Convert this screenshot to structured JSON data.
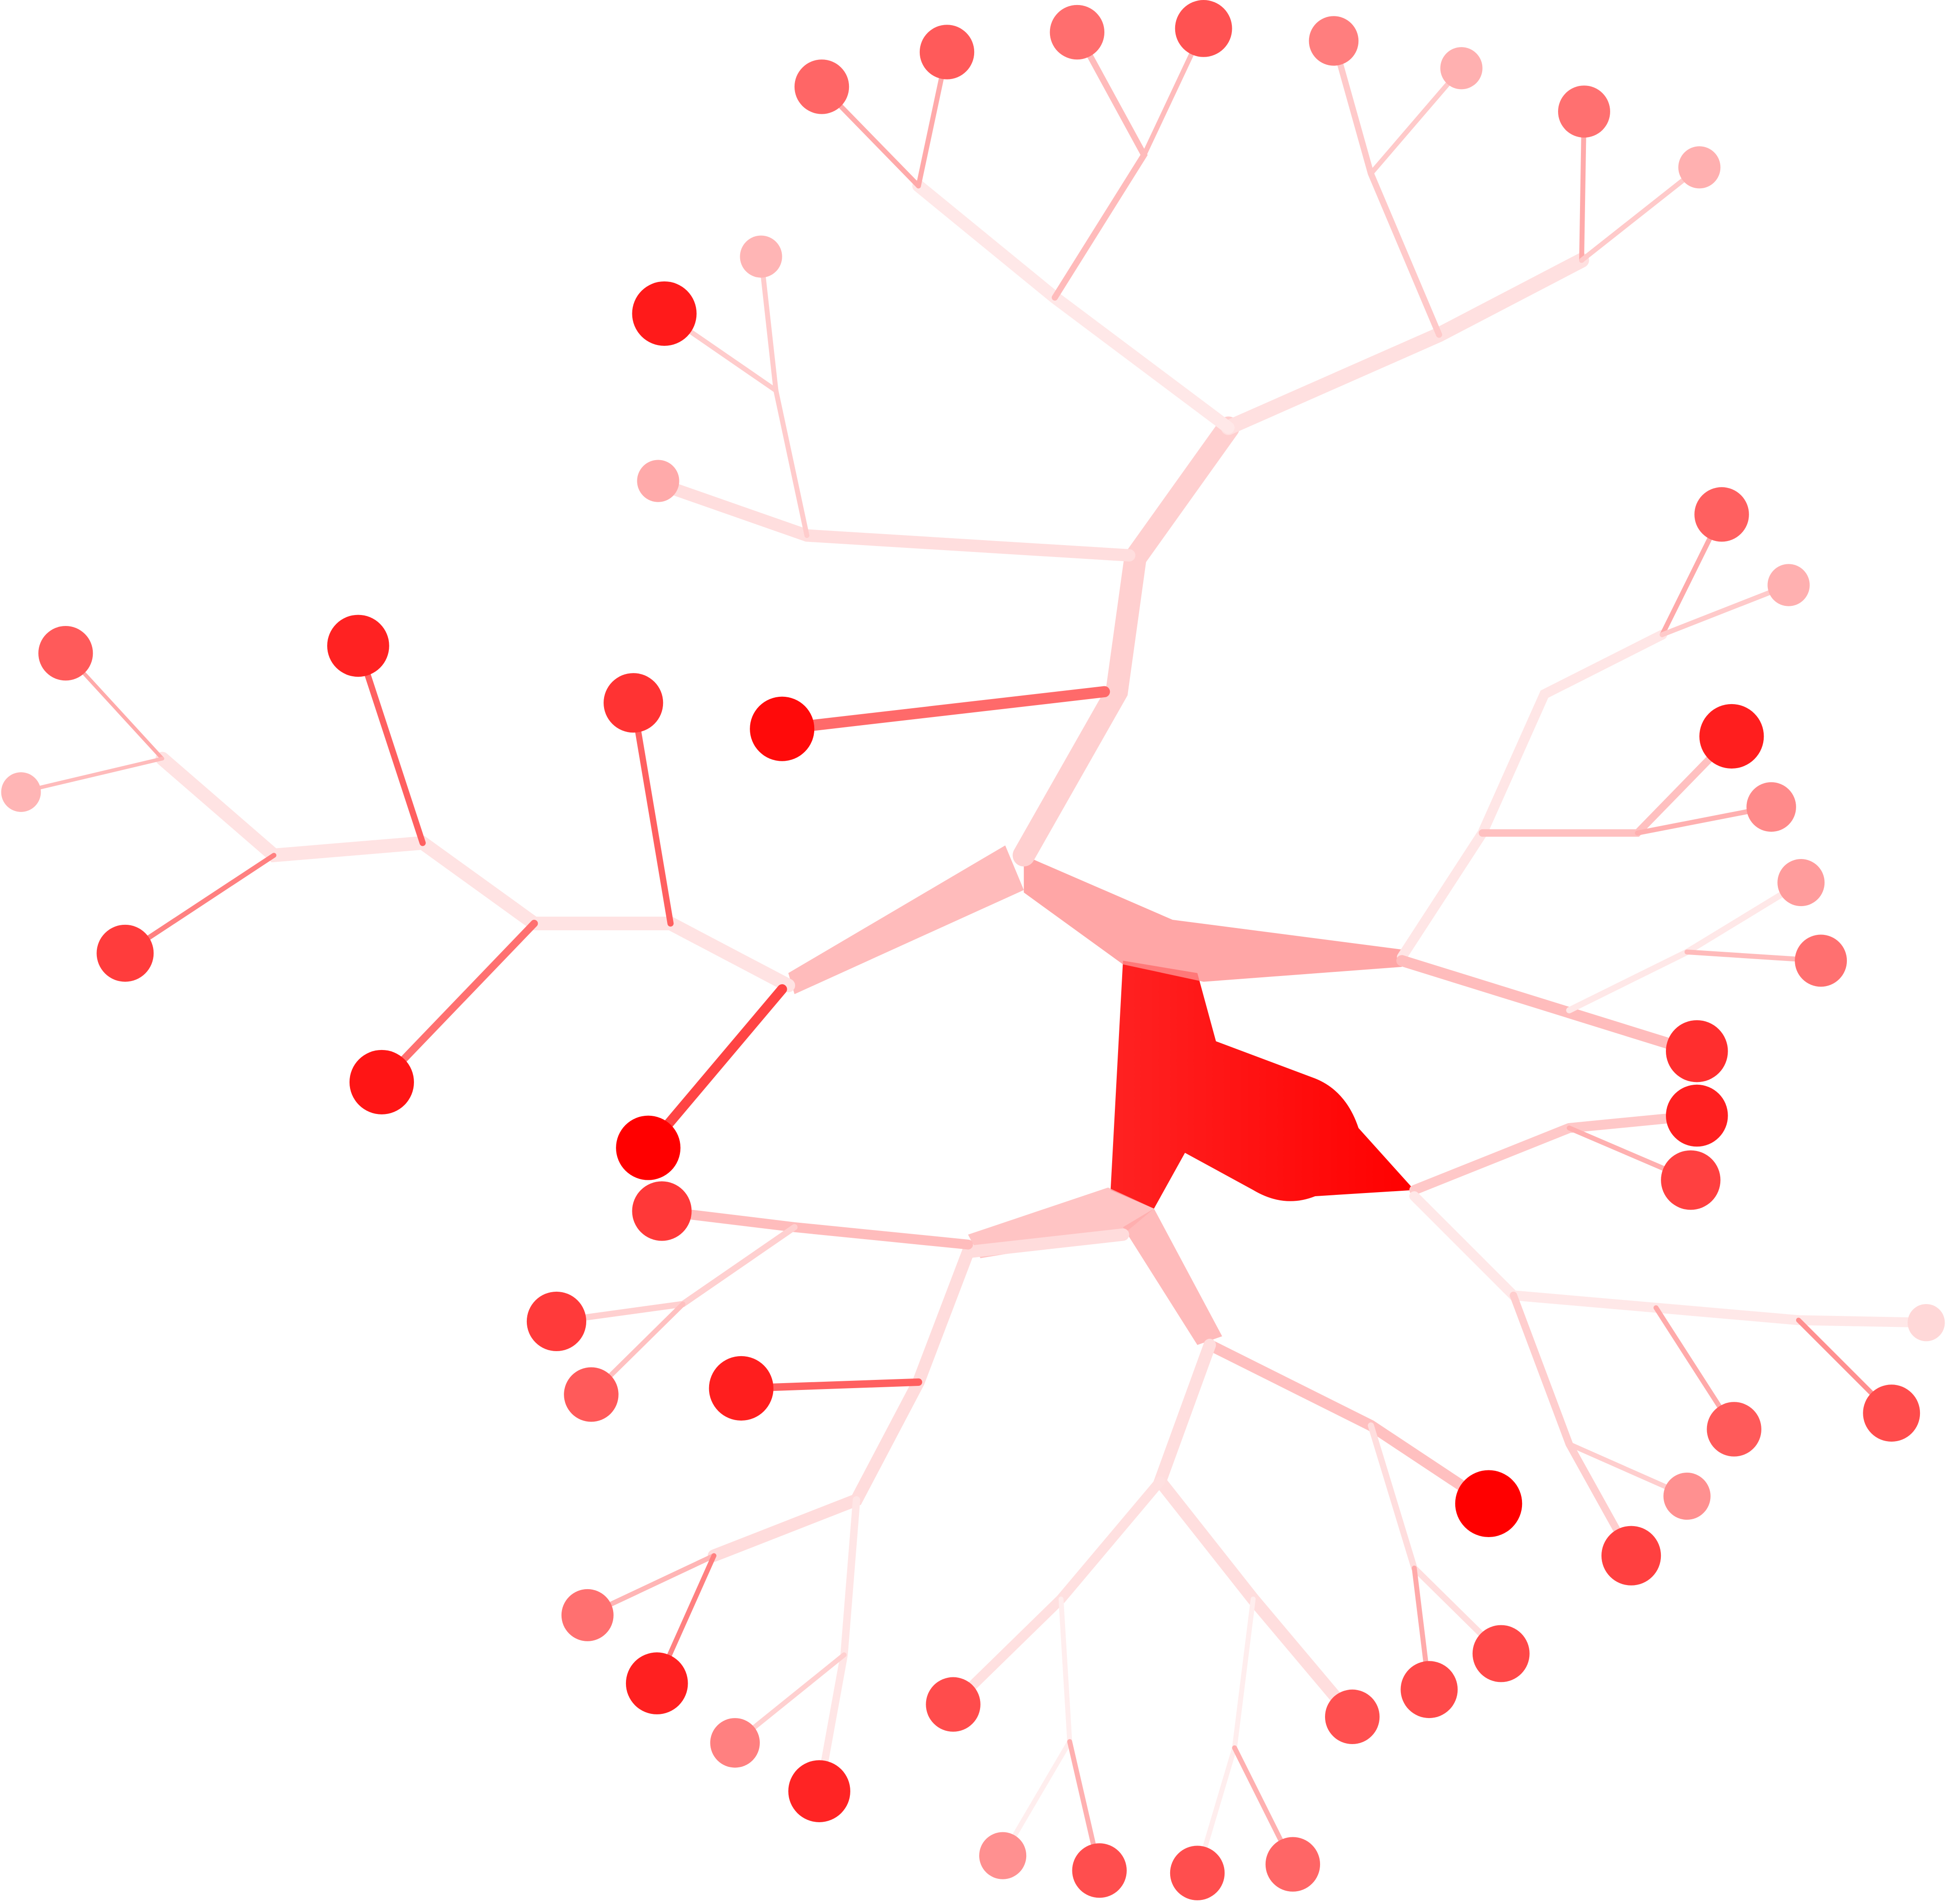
{
  "diagram": {
    "type": "radial-tree",
    "description_label": "",
    "colors": {
      "background": "#ffffff",
      "node_strong": "#ff0000",
      "node_medium": "#ff5a5a",
      "node_light": "#ffb0b0",
      "edge": "#ff8080"
    },
    "node_count": 58
  }
}
